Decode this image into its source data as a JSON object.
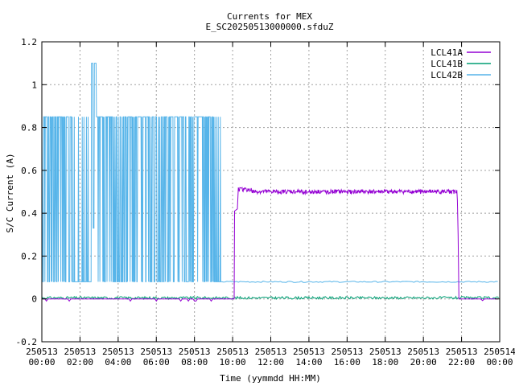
{
  "chart_data": {
    "type": "line",
    "title": "Currents for MEX",
    "subtitle": "E_SC20250513000000.sfduZ",
    "xlabel": "Time (yymmdd HH:MM)",
    "ylabel": "S/C Current (A)",
    "xlim": [
      "2025-05-13T00:00",
      "2025-05-14T00:00"
    ],
    "ylim": [
      -0.2,
      1.2
    ],
    "grid": true,
    "legend_position": "top-right",
    "x_ticks": [
      {
        "date": "250513",
        "time": "00:00",
        "hour": 0
      },
      {
        "date": "250513",
        "time": "02:00",
        "hour": 2
      },
      {
        "date": "250513",
        "time": "04:00",
        "hour": 4
      },
      {
        "date": "250513",
        "time": "06:00",
        "hour": 6
      },
      {
        "date": "250513",
        "time": "08:00",
        "hour": 8
      },
      {
        "date": "250513",
        "time": "10:00",
        "hour": 10
      },
      {
        "date": "250513",
        "time": "12:00",
        "hour": 12
      },
      {
        "date": "250513",
        "time": "14:00",
        "hour": 14
      },
      {
        "date": "250513",
        "time": "16:00",
        "hour": 16
      },
      {
        "date": "250513",
        "time": "18:00",
        "hour": 18
      },
      {
        "date": "250513",
        "time": "20:00",
        "hour": 20
      },
      {
        "date": "250513",
        "time": "22:00",
        "hour": 22
      },
      {
        "date": "250514",
        "time": "00:00",
        "hour": 24
      }
    ],
    "y_ticks": [
      {
        "label": "-0.2",
        "value": -0.2
      },
      {
        "label": "0",
        "value": 0
      },
      {
        "label": "0.2",
        "value": 0.2
      },
      {
        "label": "0.4",
        "value": 0.4
      },
      {
        "label": "0.6",
        "value": 0.6
      },
      {
        "label": "0.8",
        "value": 0.8
      },
      {
        "label": "1",
        "value": 1.0
      },
      {
        "label": "1.2",
        "value": 1.2
      }
    ],
    "series": [
      {
        "name": "LCL41A",
        "color": "#9400d3",
        "x_hours": [
          0,
          10.05,
          10.1,
          10.2,
          10.3,
          10.35,
          10.6,
          11,
          12,
          13,
          14,
          15,
          16,
          17,
          18,
          19,
          20,
          21,
          21.5,
          21.7,
          21.75,
          21.8,
          21.85,
          24
        ],
        "values": [
          0,
          0,
          0.2,
          0.41,
          0.42,
          0.52,
          0.51,
          0.5,
          0.5,
          0.5,
          0.5,
          0.5,
          0.5,
          0.49,
          0.5,
          0.49,
          0.49,
          0.5,
          0.49,
          0.49,
          0.47,
          0.4,
          0.0,
          0
        ]
      },
      {
        "name": "LCL41B",
        "color": "#009e73",
        "x_hours": [
          0,
          24
        ],
        "values": [
          0.01,
          0.01
        ]
      },
      {
        "name": "LCL42B",
        "color": "#56b4e9",
        "low_value": 0.08,
        "high_value": 0.85,
        "peak_value": 1.1,
        "x_hours": [
          0,
          0.05,
          0.1,
          2.2,
          2.3,
          2.6,
          2.65,
          2.7,
          2.75,
          2.8,
          2.85,
          2.9,
          9.4,
          9.45,
          24
        ],
        "values": [
          0.85,
          0.08,
          0.85,
          0.85,
          0.08,
          0.85,
          1.1,
          0.33,
          1.1,
          0.33,
          0.85,
          0.85,
          0.85,
          0.08,
          0.08
        ]
      }
    ]
  }
}
